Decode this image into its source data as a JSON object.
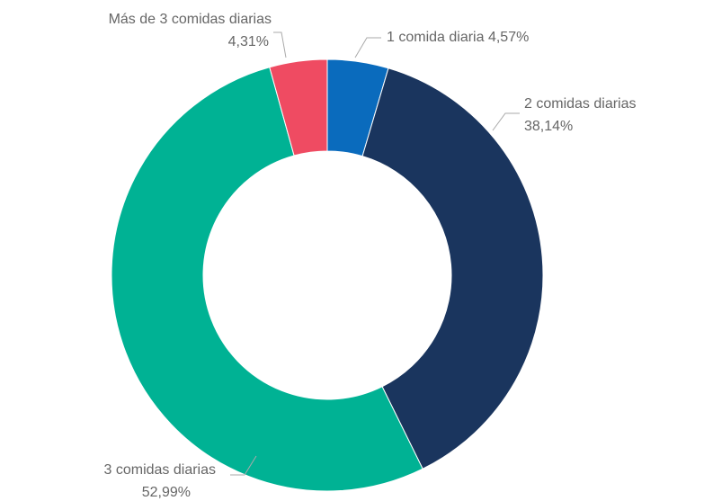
{
  "chart_data": {
    "type": "donut",
    "categories": [
      "1 comida diaria",
      "2 comidas diarias",
      "3 comidas diarias",
      "Más de 3 comidas diarias"
    ],
    "values": [
      4.57,
      38.14,
      52.99,
      4.31
    ],
    "value_labels": [
      "4,57%",
      "38,14%",
      "52,99%",
      "4,31%"
    ],
    "colors": [
      "#0a6bbd",
      "#1a355e",
      "#00b294",
      "#ef4b62"
    ]
  }
}
